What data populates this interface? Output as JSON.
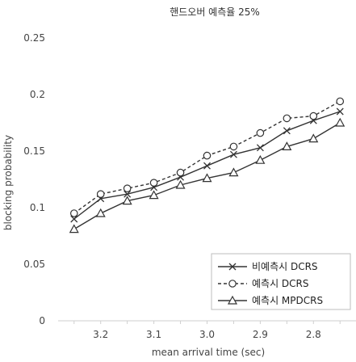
{
  "chart_data": {
    "type": "line",
    "title": "핸드오버 예측율 25%",
    "xlabel": "mean arrival time (sec)",
    "ylabel": "blocking probability",
    "x": [
      3.25,
      3.2,
      3.15,
      3.1,
      3.05,
      3.0,
      2.95,
      2.9,
      2.85,
      2.8,
      2.75
    ],
    "x_ticks": [
      "3.2",
      "3.1",
      "3.0",
      "2.9",
      "2.8"
    ],
    "x_tick_values": [
      3.2,
      3.1,
      3.0,
      2.9,
      2.8
    ],
    "xlim": [
      3.28,
      2.72
    ],
    "x_reversed": true,
    "y_ticks": [
      "0",
      "0.05",
      "0.1",
      "0.15",
      "0.2",
      "0.25"
    ],
    "y_tick_values": [
      0,
      0.05,
      0.1,
      0.15,
      0.2,
      0.25
    ],
    "ylim": [
      0,
      0.25
    ],
    "grid": false,
    "legend_position": "bottom-right",
    "series": [
      {
        "name": "비예측시 DCRS",
        "marker": "x",
        "dash": "solid",
        "values": [
          0.09,
          0.108,
          0.112,
          0.118,
          0.127,
          0.137,
          0.147,
          0.153,
          0.168,
          0.177,
          0.185
        ]
      },
      {
        "name": "예측시 DCRS",
        "marker": "circle",
        "dash": "dashed",
        "values": [
          0.095,
          0.112,
          0.117,
          0.122,
          0.131,
          0.146,
          0.154,
          0.166,
          0.179,
          0.181,
          0.194
        ]
      },
      {
        "name": "예측시 MPDCRS",
        "marker": "triangle",
        "dash": "solid",
        "values": [
          0.081,
          0.095,
          0.106,
          0.111,
          0.12,
          0.126,
          0.131,
          0.142,
          0.154,
          0.161,
          0.175
        ]
      }
    ]
  }
}
